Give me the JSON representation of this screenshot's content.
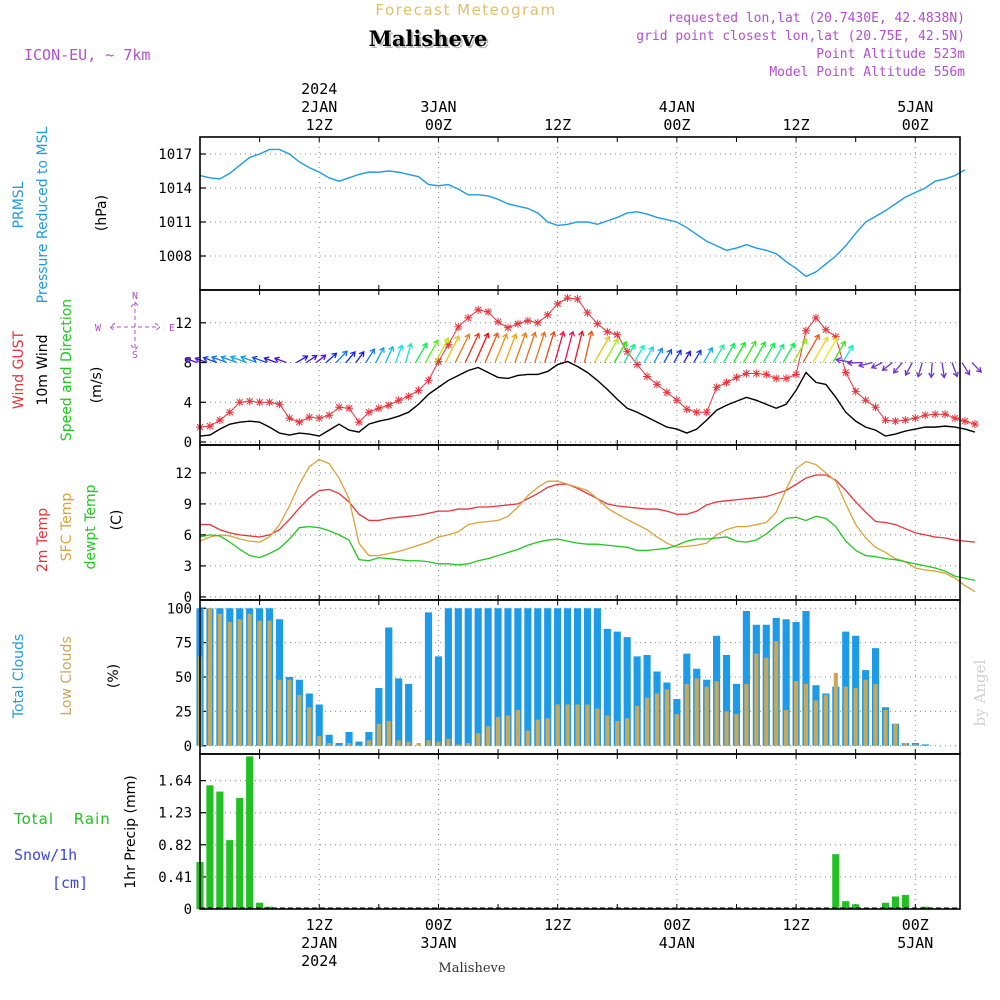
{
  "header": {
    "super_title": "Forecast Meteogram",
    "location": "Malisheve",
    "model": "ICON-EU, ~ 7km",
    "requested": "requested lon,lat (20.7430E, 42.4838N)",
    "grid_point": "grid point closest lon,lat (20.75E, 42.5N)",
    "point_altitude": "Point Altitude 523m",
    "model_altitude": "Model Point Altitude 556m",
    "credit": "by Angel",
    "footer_location": "Malisheve"
  },
  "time_axis": {
    "top_labels": [
      {
        "hour": 12,
        "lines": [
          "2024",
          "2JAN",
          "12Z"
        ]
      },
      {
        "hour": 24,
        "lines": [
          "3JAN",
          "00Z"
        ]
      },
      {
        "hour": 36,
        "lines": [
          "12Z"
        ]
      },
      {
        "hour": 48,
        "lines": [
          "4JAN",
          "00Z"
        ]
      },
      {
        "hour": 60,
        "lines": [
          "12Z"
        ]
      },
      {
        "hour": 72,
        "lines": [
          "5JAN",
          "00Z"
        ]
      }
    ],
    "bottom_labels": [
      {
        "hour": 12,
        "lines": [
          "12Z",
          "2JAN",
          "2024"
        ]
      },
      {
        "hour": 24,
        "lines": [
          "00Z",
          "3JAN"
        ]
      },
      {
        "hour": 36,
        "lines": [
          "12Z"
        ]
      },
      {
        "hour": 48,
        "lines": [
          "00Z",
          "4JAN"
        ]
      },
      {
        "hour": 60,
        "lines": [
          "12Z"
        ]
      },
      {
        "hour": 72,
        "lines": [
          "00Z",
          "5JAN"
        ]
      }
    ]
  },
  "panels": {
    "pressure": {
      "labels": [
        "PRMSL",
        "Pressure Reduced to MSL"
      ],
      "unit": "(hPa)"
    },
    "wind": {
      "labels": [
        "Wind GUST",
        "10m Wind",
        "Speed and Direction"
      ],
      "unit": "(m/s)",
      "compass": {
        "n": "N",
        "s": "S",
        "w": "W",
        "e": "E"
      }
    },
    "temp": {
      "labels": [
        "2m Temp",
        "SFC Temp",
        "dewpt Temp"
      ],
      "unit": "(C)"
    },
    "clouds": {
      "labels": [
        "Total Clouds",
        "Low Clouds"
      ],
      "unit": "(%)"
    },
    "precip": {
      "labels": [
        "Total Rain",
        "Snow/1h",
        "[cm]"
      ],
      "unit": "1hr Precip (mm)"
    }
  },
  "colors": {
    "pressure": "#1e9be8",
    "gust": "#e8343c",
    "wind": "#000000",
    "temp2m": "#e8343c",
    "sfc": "#dba339",
    "dewpt": "#1ec81e",
    "total_clouds": "#1e9be8",
    "low_clouds": "#c9a85a",
    "rain": "#22c022",
    "snow": "#3c46e6",
    "axis": "#000000",
    "title_tint": "#e0c070",
    "info": "#b050d0"
  },
  "chart_data": [
    {
      "type": "line",
      "name": "pressure",
      "x_start": 0,
      "x_step": 1,
      "xlim": [
        0,
        76.5
      ],
      "ylim": [
        1005.0,
        1018.5
      ],
      "yticks": [
        1008,
        1011,
        1014,
        1017
      ],
      "series": [
        {
          "name": "PRMSL",
          "values": [
            1015.1,
            1014.9,
            1014.8,
            1015.3,
            1016.0,
            1016.7,
            1017.0,
            1017.4,
            1017.4,
            1017.0,
            1016.3,
            1015.8,
            1015.4,
            1014.9,
            1014.6,
            1014.9,
            1015.2,
            1015.4,
            1015.4,
            1015.5,
            1015.4,
            1015.2,
            1015.0,
            1014.3,
            1014.2,
            1014.3,
            1013.9,
            1013.4,
            1013.4,
            1013.3,
            1013.0,
            1012.6,
            1012.4,
            1012.2,
            1011.8,
            1011.0,
            1010.7,
            1010.8,
            1011.0,
            1011.0,
            1010.8,
            1011.1,
            1011.4,
            1011.8,
            1011.9,
            1011.7,
            1011.4,
            1011.2,
            1011.0,
            1010.5,
            1009.9,
            1009.3,
            1008.9,
            1008.5,
            1008.7,
            1009.0,
            1008.7,
            1008.5,
            1008.2,
            1007.5,
            1006.9,
            1006.2,
            1006.6,
            1007.3,
            1008.0,
            1008.9,
            1010.0,
            1011.0,
            1011.5,
            1012.0,
            1012.6,
            1013.2,
            1013.6,
            1014.0,
            1014.6,
            1014.8,
            1015.1,
            1015.6
          ]
        }
      ]
    },
    {
      "type": "line",
      "name": "wind",
      "x_start": 0,
      "x_step": 1,
      "xlim": [
        0,
        76.5
      ],
      "ylim": [
        -0.3,
        15.3
      ],
      "yticks": [
        0,
        4,
        8,
        12
      ],
      "series": [
        {
          "name": "Wind GUST",
          "values": [
            1.5,
            1.6,
            2.2,
            3.0,
            4.0,
            4.1,
            4.0,
            4.0,
            3.8,
            2.4,
            2.0,
            2.5,
            2.4,
            2.7,
            3.5,
            3.4,
            2.0,
            3.0,
            3.4,
            3.7,
            4.2,
            4.6,
            5.2,
            6.2,
            8.1,
            9.8,
            11.6,
            12.5,
            13.3,
            13.1,
            12.1,
            11.5,
            11.9,
            12.2,
            12.0,
            12.8,
            13.9,
            14.5,
            14.4,
            13.0,
            11.9,
            11.1,
            10.8,
            9.1,
            7.8,
            6.6,
            5.8,
            5.0,
            4.2,
            3.3,
            3.0,
            3.0,
            5.5,
            6.0,
            6.5,
            6.9,
            6.9,
            6.8,
            6.4,
            6.4,
            6.8,
            11.2,
            12.5,
            11.3,
            10.6,
            7.0,
            5.1,
            4.2,
            3.5,
            2.2,
            2.1,
            2.2,
            2.4,
            2.7,
            2.8,
            2.8,
            2.4,
            2.1,
            1.8
          ]
        },
        {
          "name": "10m Wind",
          "values": [
            0.6,
            0.7,
            1.3,
            1.8,
            2.0,
            2.1,
            2.0,
            1.5,
            0.9,
            0.7,
            0.9,
            0.8,
            0.6,
            1.2,
            1.8,
            1.2,
            1.0,
            1.8,
            2.1,
            2.3,
            2.6,
            3.0,
            3.8,
            4.8,
            5.5,
            6.2,
            6.7,
            7.2,
            7.5,
            7.0,
            6.5,
            6.4,
            6.7,
            6.8,
            6.8,
            7.1,
            7.8,
            8.1,
            7.6,
            7.0,
            6.2,
            5.3,
            4.3,
            3.4,
            3.0,
            2.5,
            2.0,
            1.5,
            1.3,
            0.9,
            1.3,
            2.2,
            3.2,
            3.7,
            4.1,
            4.5,
            4.2,
            3.8,
            3.4,
            3.8,
            5.2,
            7.0,
            6.0,
            5.8,
            4.5,
            3.0,
            2.1,
            1.5,
            1.2,
            0.6,
            0.8,
            1.1,
            1.3,
            1.5,
            1.5,
            1.6,
            1.5,
            1.3,
            1.0
          ]
        }
      ]
    },
    {
      "type": "line",
      "name": "temperature",
      "x_start": 0,
      "x_step": 1,
      "xlim": [
        0,
        76.5
      ],
      "ylim": [
        -0.3,
        14.7
      ],
      "yticks": [
        0,
        3,
        6,
        9,
        12
      ],
      "series": [
        {
          "name": "2m Temp",
          "values": [
            7.0,
            7.0,
            6.5,
            6.2,
            6.0,
            5.9,
            5.8,
            6.0,
            6.5,
            7.5,
            8.6,
            9.6,
            10.3,
            10.4,
            10.0,
            9.2,
            8.0,
            7.4,
            7.4,
            7.6,
            7.7,
            7.8,
            7.9,
            8.1,
            8.3,
            8.3,
            8.5,
            8.5,
            8.7,
            8.7,
            8.8,
            8.9,
            9.0,
            9.5,
            10.0,
            10.6,
            10.9,
            10.9,
            10.5,
            10.0,
            9.5,
            9.0,
            8.8,
            8.7,
            8.6,
            8.5,
            8.5,
            8.3,
            8.0,
            8.0,
            8.3,
            8.9,
            9.2,
            9.3,
            9.4,
            9.5,
            9.6,
            9.7,
            10.0,
            10.3,
            10.9,
            11.5,
            11.8,
            11.8,
            11.3,
            10.3,
            9.2,
            8.2,
            7.3,
            7.2,
            7.0,
            6.6,
            6.2,
            6.0,
            5.8,
            5.7,
            5.5,
            5.4,
            5.3
          ]
        },
        {
          "name": "SFC Temp",
          "values": [
            5.4,
            5.8,
            6.0,
            5.9,
            5.6,
            5.4,
            5.3,
            5.8,
            7.0,
            8.8,
            10.9,
            12.6,
            13.3,
            12.9,
            11.5,
            9.5,
            5.2,
            4.0,
            4.0,
            4.2,
            4.4,
            4.7,
            5.0,
            5.3,
            5.8,
            6.0,
            6.3,
            7.0,
            7.2,
            7.3,
            7.4,
            7.8,
            8.7,
            9.8,
            10.6,
            11.2,
            11.2,
            10.9,
            10.6,
            10.3,
            9.5,
            8.6,
            8.0,
            7.5,
            7.0,
            6.5,
            5.8,
            5.2,
            4.8,
            4.9,
            5.0,
            5.2,
            6.0,
            6.5,
            6.8,
            6.8,
            7.0,
            7.2,
            8.2,
            10.4,
            12.4,
            13.1,
            12.8,
            12.0,
            11.2,
            9.0,
            7.0,
            5.7,
            4.8,
            4.3,
            3.7,
            3.4,
            2.8,
            2.6,
            2.5,
            2.3,
            1.8,
            1.1,
            0.5
          ]
        },
        {
          "name": "dewpt Temp",
          "values": [
            5.8,
            6.0,
            5.9,
            5.3,
            4.6,
            4.0,
            3.8,
            4.2,
            4.7,
            5.6,
            6.7,
            6.8,
            6.7,
            6.4,
            6.0,
            5.5,
            3.6,
            3.5,
            3.8,
            3.7,
            3.6,
            3.5,
            3.5,
            3.4,
            3.2,
            3.2,
            3.1,
            3.2,
            3.5,
            3.7,
            4.0,
            4.3,
            4.6,
            5.0,
            5.3,
            5.5,
            5.6,
            5.4,
            5.2,
            5.1,
            5.1,
            5.0,
            4.9,
            4.8,
            4.5,
            4.5,
            4.6,
            4.7,
            5.0,
            5.4,
            5.6,
            5.6,
            5.7,
            5.8,
            5.4,
            5.3,
            5.5,
            6.1,
            6.9,
            7.6,
            7.7,
            7.4,
            7.8,
            7.6,
            6.8,
            5.4,
            4.5,
            4.0,
            3.9,
            3.7,
            3.6,
            3.4,
            3.2,
            3.0,
            2.8,
            2.5,
            2.0,
            1.8,
            1.6
          ]
        }
      ]
    },
    {
      "type": "bar",
      "name": "clouds",
      "x_start": 0,
      "x_step": 1,
      "xlim": [
        0,
        76.5
      ],
      "ylim": [
        -6,
        106
      ],
      "yticks": [
        0,
        25,
        50,
        75,
        100
      ],
      "series": [
        {
          "name": "Total Clouds",
          "values": [
            100,
            100,
            100,
            100,
            100,
            100,
            100,
            100,
            92,
            50,
            48,
            38,
            30,
            8,
            2,
            10,
            3,
            10,
            42,
            86,
            49,
            45,
            0,
            97,
            65,
            100,
            100,
            100,
            100,
            100,
            100,
            100,
            100,
            100,
            100,
            100,
            100,
            100,
            100,
            100,
            100,
            85,
            83,
            79,
            65,
            66,
            54,
            46,
            34,
            67,
            56,
            48,
            80,
            66,
            45,
            98,
            88,
            88,
            93,
            92,
            90,
            98,
            44,
            38,
            43,
            83,
            80,
            55,
            71,
            28,
            16,
            2,
            2,
            1,
            0,
            0,
            0,
            0
          ]
        },
        {
          "name": "Low Clouds",
          "values": [
            65,
            100,
            96,
            90,
            92,
            96,
            91,
            91,
            48,
            48,
            37,
            28,
            7,
            2,
            0,
            2,
            0,
            4,
            16,
            18,
            4,
            3,
            2,
            4,
            3,
            5,
            1,
            2,
            9,
            14,
            21,
            22,
            26,
            11,
            19,
            20,
            30,
            30,
            30,
            30,
            27,
            22,
            18,
            20,
            29,
            35,
            38,
            41,
            23,
            45,
            49,
            43,
            47,
            25,
            23,
            45,
            67,
            64,
            76,
            26,
            47,
            45,
            33,
            37,
            53,
            43,
            42,
            48,
            45,
            26,
            16,
            2,
            1,
            0,
            0,
            0,
            0,
            0
          ]
        }
      ]
    },
    {
      "type": "bar",
      "name": "precipitation",
      "x_start": 0,
      "x_step": 1,
      "xlim": [
        0,
        76.5
      ],
      "ylim": [
        0,
        1.98
      ],
      "yticks": [
        0,
        0.41,
        0.82,
        1.23,
        1.64
      ],
      "series": [
        {
          "name": "Total Rain",
          "values": [
            0.6,
            1.58,
            1.5,
            0.88,
            1.42,
            1.95,
            0.08,
            0.03,
            0,
            0,
            0,
            0,
            0,
            0,
            0,
            0,
            0,
            0,
            0,
            0,
            0,
            0,
            0,
            0,
            0,
            0,
            0,
            0,
            0,
            0,
            0,
            0,
            0,
            0,
            0,
            0,
            0,
            0,
            0,
            0,
            0,
            0,
            0,
            0,
            0,
            0,
            0,
            0,
            0,
            0,
            0,
            0,
            0,
            0,
            0,
            0,
            0,
            0,
            0,
            0,
            0,
            0,
            0,
            0,
            0.7,
            0.1,
            0.06,
            0,
            0,
            0.08,
            0.16,
            0.18,
            0,
            0.03,
            0,
            0,
            0,
            0
          ]
        }
      ]
    }
  ]
}
